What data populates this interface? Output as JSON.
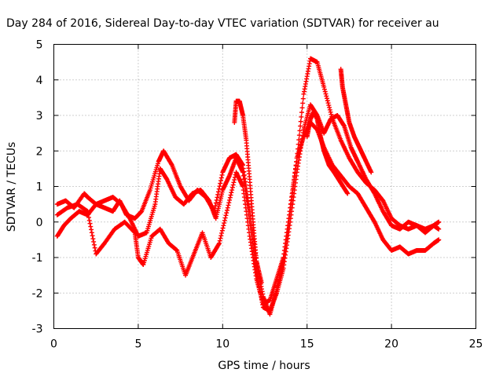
{
  "chart_data": {
    "type": "scatter",
    "title": "Day 284 of 2016, Sidereal Day-to-day VTEC variation (SDTVAR) for receiver au",
    "xlabel": "GPS time / hours",
    "ylabel": "SDTVAR / TECUs",
    "xlim": [
      0,
      25
    ],
    "ylim": [
      -3,
      5
    ],
    "xticks": [
      "0",
      "5",
      "10",
      "15",
      "20",
      "25"
    ],
    "yticks": [
      "-3",
      "-2",
      "-1",
      "0",
      "1",
      "2",
      "3",
      "4",
      "5"
    ],
    "grid": true,
    "legend": "none",
    "marker": "plus",
    "color": "#ff0000",
    "series": [
      {
        "x": [
          0.2,
          0.7,
          1.2,
          1.8,
          2.0,
          2.5,
          3.0,
          3.5,
          3.9,
          4.3,
          4.8,
          5.2,
          5.7,
          6.2,
          6.5,
          7.0,
          7.5,
          8.0,
          8.5,
          9.0,
          9.5,
          10.0,
          10.4,
          10.8,
          11.2,
          11.6,
          12.0,
          12.4,
          12.8,
          13.2,
          13.6,
          14.0,
          14.4,
          14.8,
          15.2,
          15.6,
          16.0,
          16.5,
          17.0,
          17.5,
          18.0,
          18.5,
          19.0,
          19.5,
          20.0,
          20.5,
          21.0,
          21.5,
          22.0,
          22.5,
          22.8
        ],
        "y": [
          0.5,
          0.6,
          0.4,
          0.8,
          0.7,
          0.5,
          0.4,
          0.3,
          0.6,
          0.2,
          0.1,
          0.3,
          0.9,
          1.7,
          2.0,
          1.6,
          1.0,
          0.6,
          0.9,
          0.7,
          0.3,
          1.4,
          1.8,
          1.9,
          1.6,
          0.3,
          -1.1,
          -2.1,
          -2.6,
          -1.9,
          -1.1,
          0.3,
          1.8,
          3.6,
          4.6,
          4.5,
          3.8,
          2.9,
          2.3,
          1.8,
          1.4,
          1.1,
          0.9,
          0.6,
          0.1,
          -0.1,
          -0.2,
          -0.1,
          -0.3,
          -0.1,
          0.0
        ]
      },
      {
        "x": [
          0.2,
          0.6,
          1.0,
          1.5,
          2.0,
          2.5,
          3.0,
          3.5,
          4.0,
          4.5,
          5.0,
          5.5,
          6.0,
          6.3,
          6.7,
          7.2,
          7.7,
          8.2,
          8.7,
          9.2,
          9.6,
          10.0,
          10.4,
          10.8,
          11.2,
          11.6,
          12.0,
          12.4,
          12.8,
          13.2,
          13.6,
          14.0,
          14.4,
          14.8,
          15.2,
          15.6,
          16.0,
          16.4,
          16.8,
          17.2,
          17.6,
          18.0,
          18.5,
          19.0,
          19.5,
          20.0,
          20.5,
          21.0,
          21.5,
          22.0,
          22.5,
          22.8
        ],
        "y": [
          -0.4,
          -0.1,
          0.1,
          0.3,
          0.2,
          0.5,
          0.6,
          0.7,
          0.5,
          0.1,
          -0.4,
          -0.3,
          0.5,
          1.5,
          1.2,
          0.7,
          0.5,
          0.8,
          0.9,
          0.6,
          0.1,
          0.9,
          1.3,
          1.8,
          1.4,
          0.0,
          -1.4,
          -2.4,
          -2.5,
          -2.0,
          -1.3,
          0.0,
          1.4,
          2.6,
          3.3,
          3.0,
          2.5,
          2.9,
          3.0,
          2.7,
          2.1,
          1.7,
          1.2,
          0.8,
          0.3,
          -0.1,
          -0.2,
          0.0,
          -0.1,
          -0.2,
          -0.1,
          -0.2
        ]
      },
      {
        "x": [
          0.2,
          0.8,
          1.4,
          2.0,
          2.5,
          3.0,
          3.6,
          4.2,
          4.8,
          5.0,
          5.3,
          5.8,
          6.3,
          6.8,
          7.3,
          7.8,
          8.3,
          8.8,
          9.3,
          9.8,
          10.3,
          10.8,
          11.2,
          11.6,
          12.0,
          12.4,
          12.8,
          13.2,
          13.6,
          14.0,
          14.4,
          14.8,
          15.2,
          15.6,
          16.0,
          16.5,
          17.0,
          17.5,
          18.0,
          18.5,
          19.0,
          19.5,
          20.0,
          20.5,
          21.0,
          21.5,
          22.0,
          22.5,
          22.8
        ],
        "y": [
          0.2,
          0.4,
          0.5,
          0.3,
          -0.9,
          -0.6,
          -0.2,
          0.0,
          -0.3,
          -1.0,
          -1.2,
          -0.4,
          -0.2,
          -0.6,
          -0.8,
          -1.5,
          -0.9,
          -0.3,
          -1.0,
          -0.6,
          0.4,
          1.4,
          1.0,
          -0.4,
          -1.6,
          -2.3,
          -2.2,
          -1.6,
          -1.0,
          0.4,
          1.8,
          2.4,
          2.8,
          2.6,
          2.1,
          1.6,
          1.3,
          1.0,
          0.8,
          0.4,
          0.0,
          -0.5,
          -0.8,
          -0.7,
          -0.9,
          -0.8,
          -0.8,
          -0.6,
          -0.5
        ]
      },
      {
        "x": [
          10.7,
          10.8,
          11.0,
          11.2,
          11.4,
          11.6,
          11.8,
          12.0,
          12.3
        ],
        "y": [
          2.8,
          3.4,
          3.4,
          3.0,
          2.3,
          1.2,
          0.0,
          -1.1,
          -1.7
        ]
      },
      {
        "x": [
          17.0,
          17.1,
          17.3,
          17.5,
          17.8,
          18.1,
          18.4,
          18.8
        ],
        "y": [
          4.3,
          3.8,
          3.3,
          2.8,
          2.4,
          2.1,
          1.8,
          1.4
        ]
      },
      {
        "x": [
          15.0,
          15.2,
          15.4,
          15.6,
          15.8,
          16.0,
          16.3,
          16.6,
          17.0,
          17.4
        ],
        "y": [
          2.4,
          2.9,
          3.1,
          2.9,
          2.4,
          2.0,
          1.6,
          1.4,
          1.1,
          0.8
        ]
      }
    ]
  }
}
